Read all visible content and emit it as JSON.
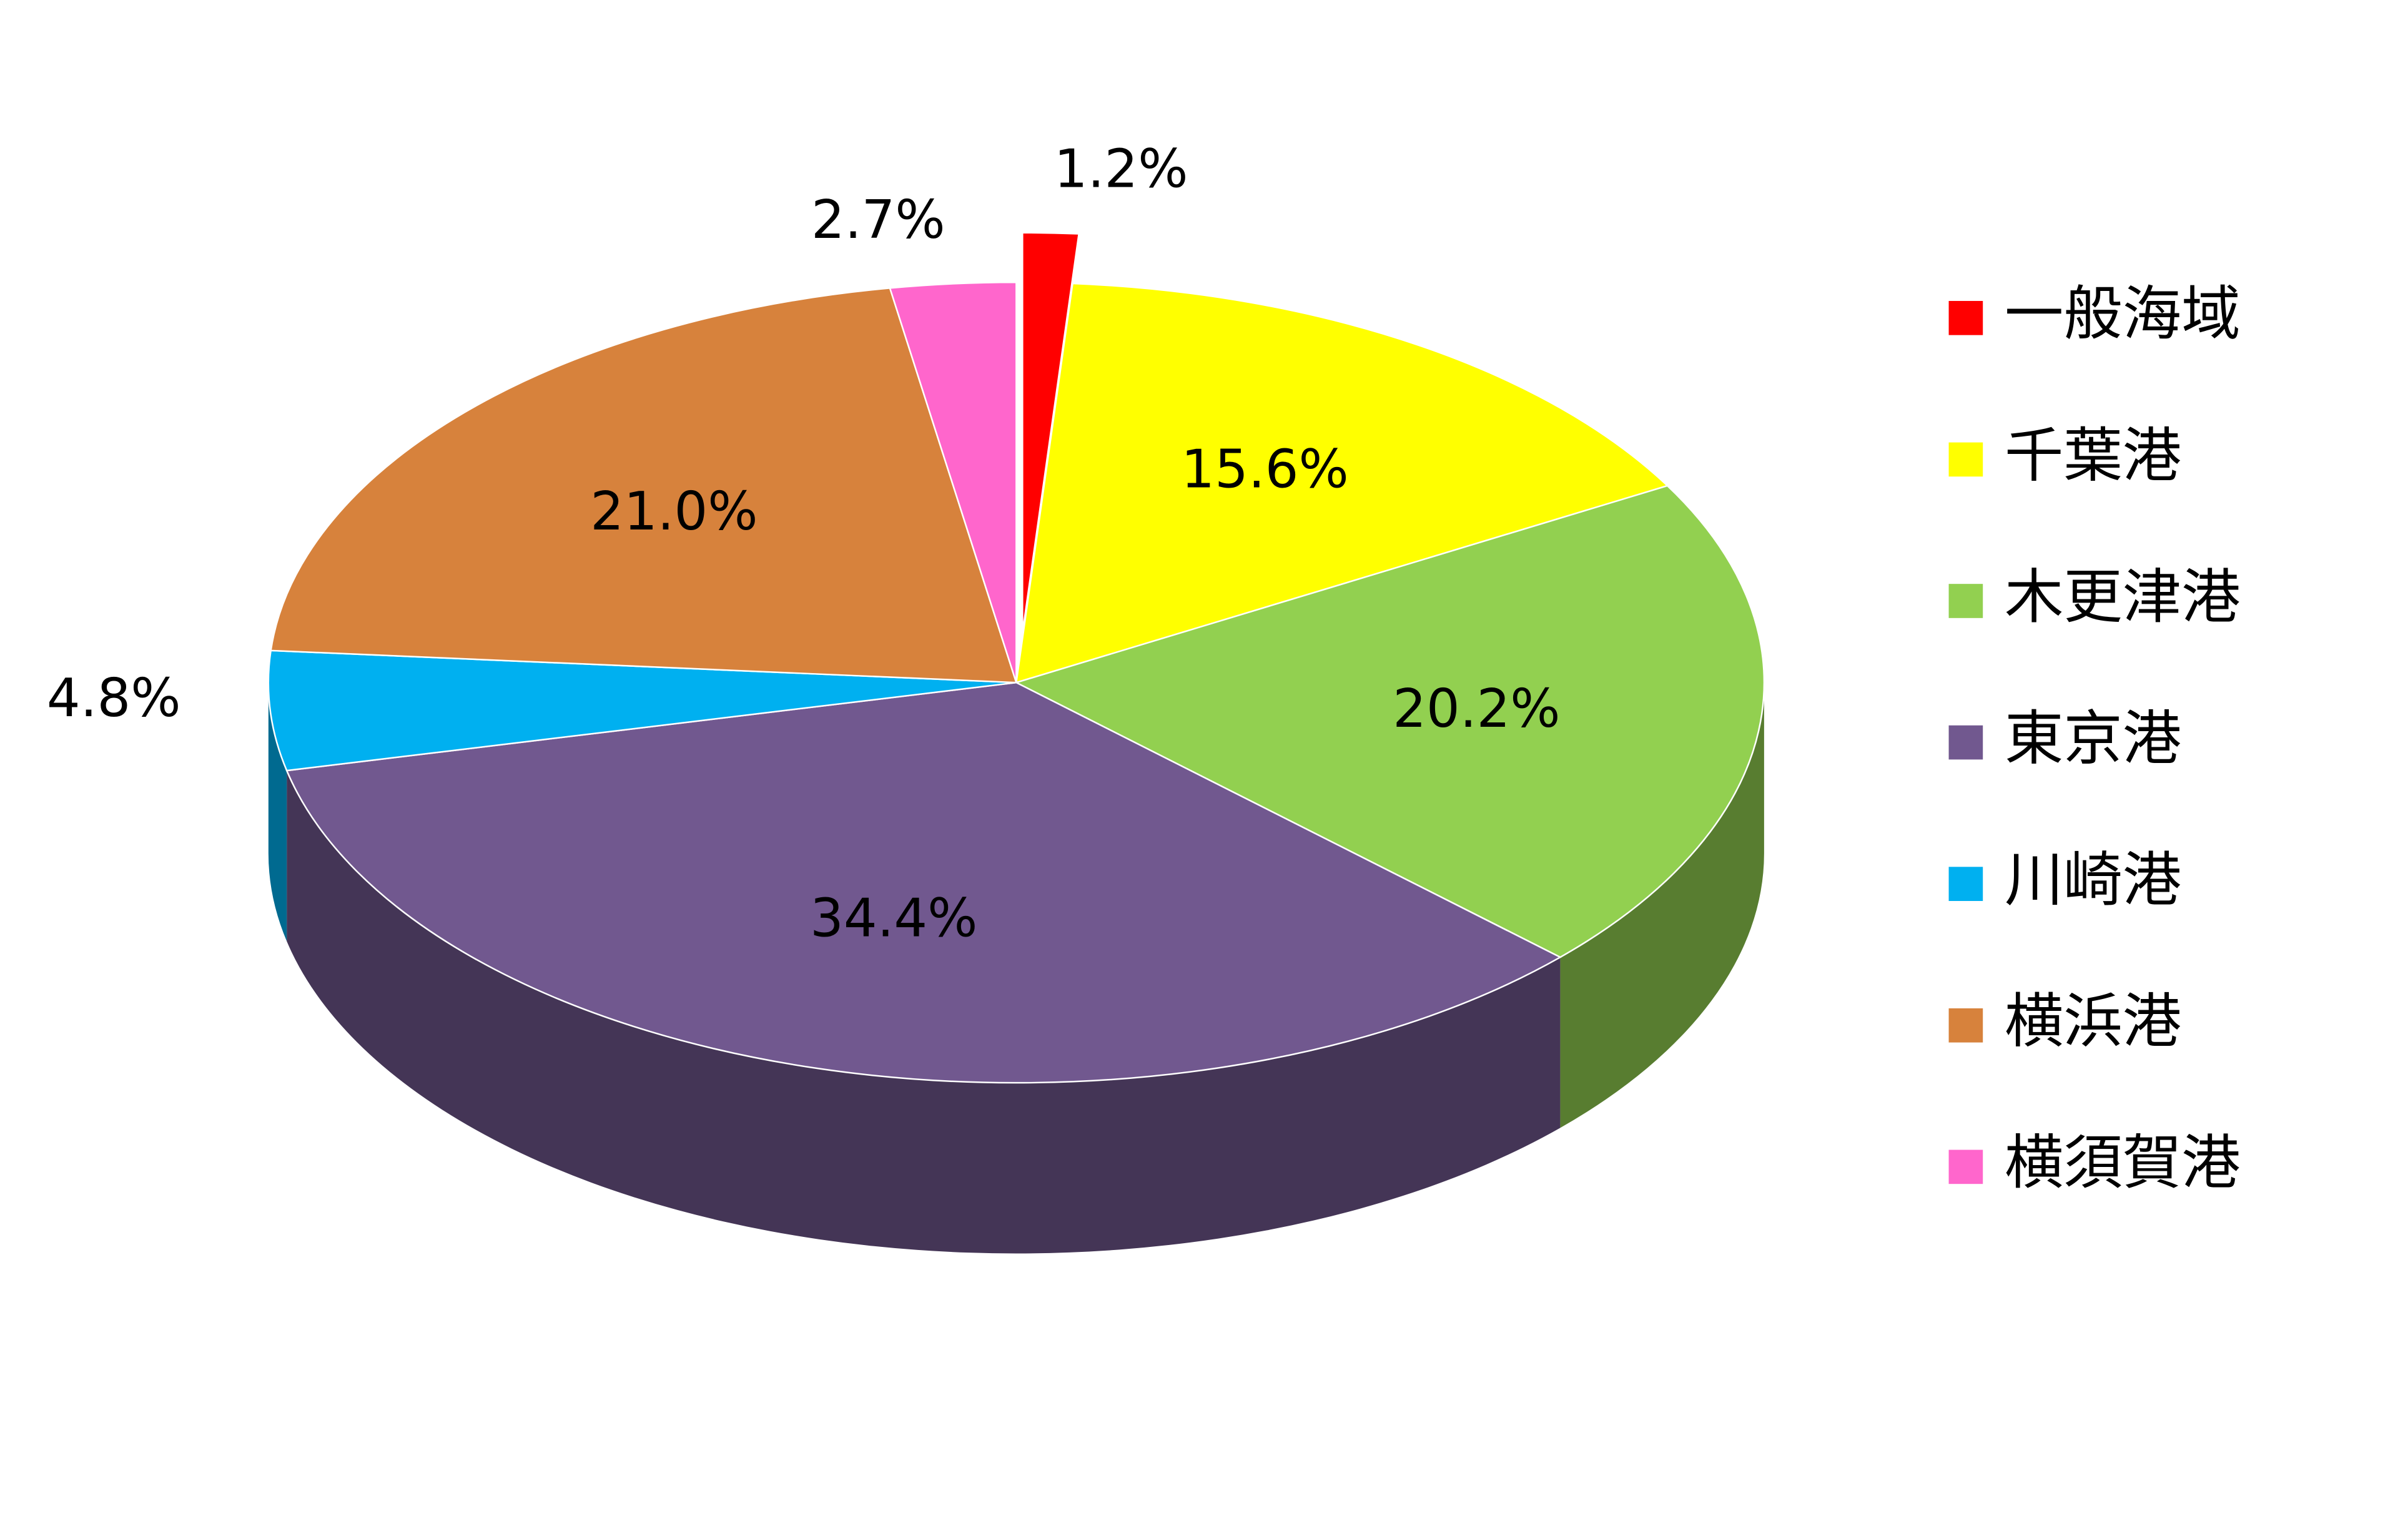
{
  "chart_data": {
    "type": "pie",
    "categories": [
      "一般海域",
      "千葉港",
      "木更津港",
      "東京港",
      "川崎港",
      "横浜港",
      "横須賀港"
    ],
    "values": [
      1.2,
      15.6,
      20.2,
      34.4,
      4.8,
      21.0,
      2.7
    ],
    "value_labels": [
      "1.2%",
      "15.6%",
      "20.2%",
      "34.4%",
      "4.8%",
      "21.0%",
      "2.7%"
    ],
    "colors": [
      "#ff0000",
      "#ffff00",
      "#92d050",
      "#71588f",
      "#00b0f0",
      "#d7823c",
      "#ff66cc"
    ],
    "legend": "right"
  }
}
